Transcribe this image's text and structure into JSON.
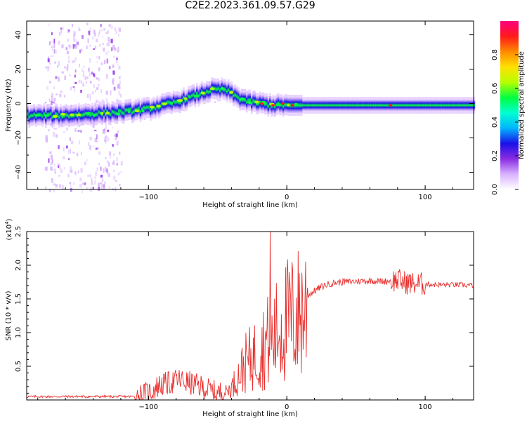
{
  "title": "C2E2.2023.361.09.57.G29",
  "colors": {
    "snr_line": "#e8302e",
    "axis": "#000000",
    "spectrum_ramp": [
      "#ffffff",
      "#d8b2ff",
      "#8a2be2",
      "#1a10e8",
      "#00b5ff",
      "#00ffd0",
      "#00ff40",
      "#b6ff00",
      "#ffe000",
      "#ff8a00",
      "#ff1a1a",
      "#ff007f"
    ]
  },
  "chart_data": [
    {
      "type": "heatmap",
      "title": "C2E2.2023.361.09.57.G29",
      "xlabel": "Height of straight line (km)",
      "ylabel": "Frequency (Hz)",
      "xlim": [
        -188,
        135
      ],
      "ylim": [
        -50,
        48
      ],
      "x_ticks": [
        -100,
        0,
        100
      ],
      "y_ticks": [
        -40,
        -20,
        0,
        20,
        40
      ],
      "colorbar": {
        "label": "Normalized spectral amplitude",
        "range": [
          0.0,
          1.0
        ],
        "ticks": [
          "0.0",
          "0.2",
          "0.4",
          "0.6",
          "0.8"
        ]
      },
      "ridge": {
        "x": [
          -188,
          -160,
          -140,
          -120,
          -100,
          -80,
          -65,
          -55,
          -45,
          -35,
          -28,
          -20,
          -10,
          0,
          10,
          40,
          80,
          135
        ],
        "y": [
          -7,
          -7,
          -6,
          -5,
          -3,
          1,
          5,
          8,
          8,
          3,
          1,
          0,
          -1,
          -1,
          -1,
          -1,
          -1,
          -1
        ]
      },
      "noise_band_x": [
        -175,
        -120
      ]
    },
    {
      "type": "line",
      "xlabel": "Height of straight line (km)",
      "ylabel": "SNR (10 * v/v)",
      "y_multiplier": "(x10",
      "y_multiplier_exp": "4",
      "y_multiplier_close": ")",
      "xlim": [
        -188,
        135
      ],
      "ylim": [
        0,
        2.5
      ],
      "x_ticks": [
        -100,
        0,
        100
      ],
      "y_ticks": [
        0.5,
        1.0,
        1.5,
        2.0,
        2.5
      ],
      "y_tick_labels": [
        "0.5",
        "1.0",
        "1.5",
        "2.0",
        "2.5"
      ],
      "series": [
        {
          "x": [
            -188,
            -160,
            -130,
            -110,
            -100,
            -92,
            -85,
            -78,
            -70,
            -60,
            -50,
            -45,
            -40,
            -35,
            -30,
            -25,
            -20,
            -15,
            -10,
            -5,
            0,
            5,
            10,
            15,
            20,
            25,
            30,
            35,
            40,
            50,
            60,
            70,
            80,
            85,
            90,
            95,
            100,
            110,
            120,
            135
          ],
          "y": [
            0.05,
            0.05,
            0.05,
            0.05,
            0.1,
            0.22,
            0.25,
            0.3,
            0.25,
            0.18,
            0.1,
            0.12,
            0.2,
            0.4,
            0.6,
            0.7,
            0.8,
            0.95,
            1.0,
            1.2,
            1.3,
            1.35,
            1.45,
            1.55,
            1.62,
            1.68,
            1.72,
            1.74,
            1.75,
            1.76,
            1.77,
            1.76,
            1.78,
            1.75,
            1.73,
            1.72,
            1.72,
            1.71,
            1.71,
            1.7
          ]
        }
      ]
    }
  ]
}
